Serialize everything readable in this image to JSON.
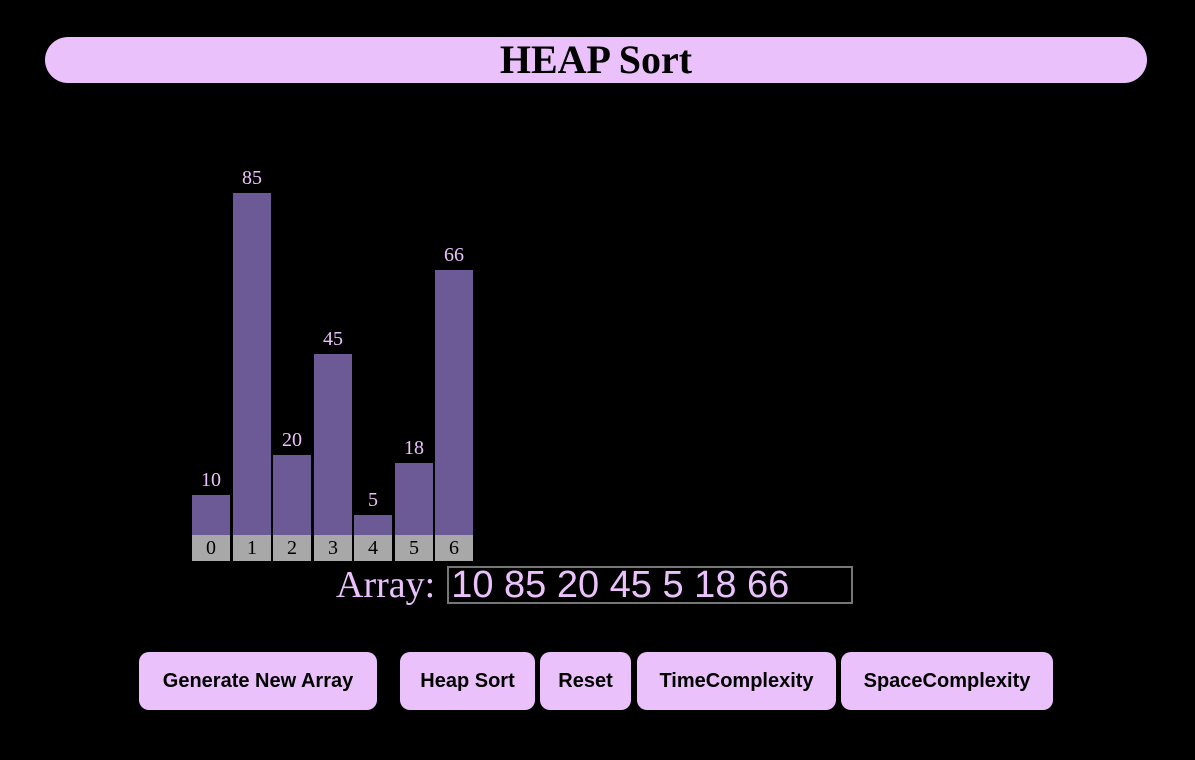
{
  "header": {
    "title": "HEAP Sort"
  },
  "colors": {
    "accent": "#ebc1fc",
    "bar": "#6c5a96",
    "index_bg": "#a8a8a8",
    "background": "#000000"
  },
  "chart_data": {
    "type": "bar",
    "categories": [
      "0",
      "1",
      "2",
      "3",
      "4",
      "5",
      "6"
    ],
    "values": [
      10,
      85,
      20,
      45,
      5,
      18,
      66
    ]
  },
  "array_input": {
    "label": "Array:",
    "value": "10 85 20 45 5 18 66"
  },
  "buttons": {
    "generate": "Generate New Array",
    "heap_sort": "Heap Sort",
    "reset": "Reset",
    "time": "TimeComplexity",
    "space": "SpaceComplexity"
  }
}
